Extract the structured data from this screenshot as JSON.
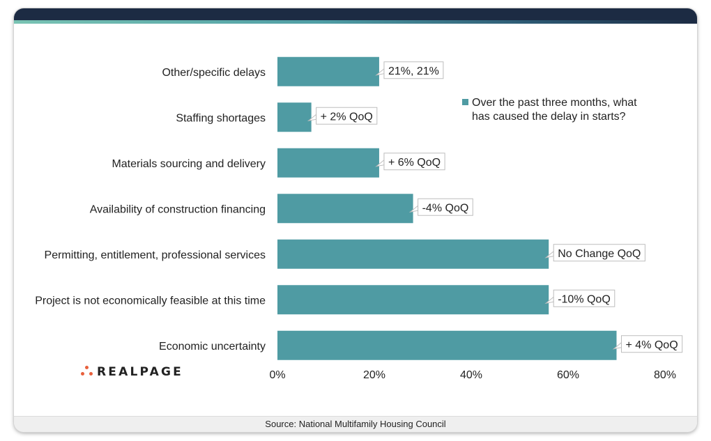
{
  "brand": {
    "logo_text": "REALPAGE",
    "accent_color": "#e8603c"
  },
  "footer": {
    "source": "Source: National Multifamily Housing Council"
  },
  "chart_data": {
    "type": "bar",
    "orientation": "horizontal",
    "categories": [
      "Other/specific delays",
      "Staffing shortages",
      "Materials sourcing and delivery",
      "Availability of construction financing",
      "Permitting, entitlement, professional services",
      "Project is not economically feasible at this time",
      "Economic uncertainty"
    ],
    "series": [
      {
        "name": "Over the past three months, what has caused the delay in starts?",
        "color": "#4f9ba3",
        "values": [
          21,
          7,
          21,
          28,
          56,
          56,
          70
        ]
      }
    ],
    "annotations": [
      "21%, 21%",
      "+ 2% QoQ",
      "+ 6% QoQ",
      "-4% QoQ",
      "No Change QoQ",
      "-10% QoQ",
      "+ 4% QoQ"
    ],
    "xlim": [
      0,
      80
    ],
    "xticks": [
      "0%",
      "20%",
      "40%",
      "60%",
      "80%"
    ],
    "tick_values": [
      0,
      20,
      40,
      60,
      80
    ],
    "legend_position": "top-right",
    "grid": false
  }
}
